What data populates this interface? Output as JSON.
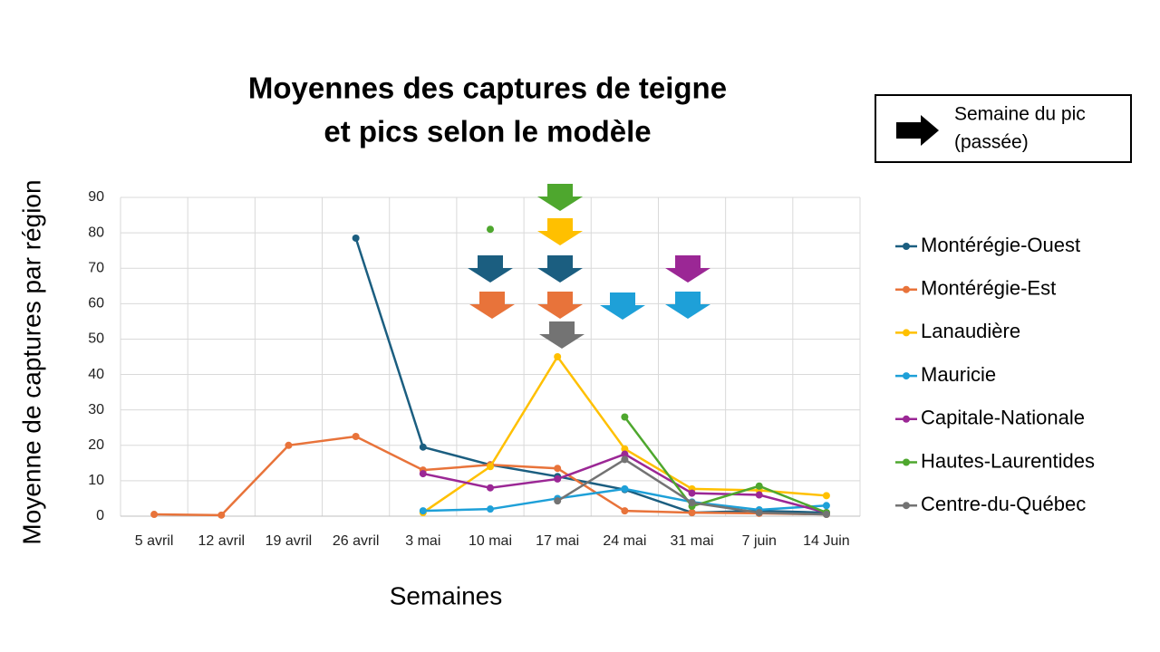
{
  "chart_data": {
    "type": "line",
    "title": [
      "Moyennes des captures de teigne",
      "et pics selon le modèle"
    ],
    "x_label": "Semaines",
    "y_label": "Moyenne de captures par région",
    "note": [
      "Semaine du pic",
      "(passée)"
    ],
    "categories": [
      "5 avril",
      "12 avril",
      "19 avril",
      "26 avril",
      "3 mai",
      "10 mai",
      "17 mai",
      "24 mai",
      "31 mai",
      "7 juin",
      "14 Juin"
    ],
    "ylim": [
      0,
      90
    ],
    "yticks": [
      0,
      10,
      20,
      30,
      40,
      50,
      60,
      70,
      80,
      90
    ],
    "grid": true,
    "legend": "right",
    "series": [
      {
        "name": "Montérégie-Ouest",
        "color": "#1b5e80",
        "values": [
          null,
          null,
          null,
          78.5,
          19.5,
          14.5,
          11.2,
          7.5,
          1,
          1.5,
          1
        ]
      },
      {
        "name": "Montérégie-Est",
        "color": "#e8733a",
        "values": [
          0.5,
          0.3,
          20,
          22.5,
          13,
          14.5,
          13.5,
          1.5,
          1,
          0.8,
          0.5
        ]
      },
      {
        "name": "Lanaudière",
        "color": "#ffc000",
        "values": [
          null,
          null,
          null,
          null,
          1,
          14,
          45,
          19,
          7.7,
          7.3,
          5.8
        ]
      },
      {
        "name": "Mauricie",
        "color": "#1ea0d8",
        "values": [
          null,
          null,
          null,
          null,
          1.5,
          2,
          5,
          7.7,
          4,
          1.8,
          3
        ]
      },
      {
        "name": "Capitale-Nationale",
        "color": "#9b2795",
        "values": [
          null,
          null,
          null,
          null,
          12,
          8,
          10.5,
          17.5,
          6.5,
          6,
          1
        ]
      },
      {
        "name": "Hautes-Laurentides",
        "color": "#4ea72e",
        "values": [
          null,
          null,
          null,
          null,
          null,
          81,
          null,
          28,
          2.8,
          8.5,
          1
        ]
      },
      {
        "name": "Centre-du-Québec",
        "color": "#737373",
        "values": [
          null,
          null,
          null,
          null,
          null,
          null,
          4.3,
          16,
          3.8,
          1,
          0.5
        ]
      }
    ]
  }
}
